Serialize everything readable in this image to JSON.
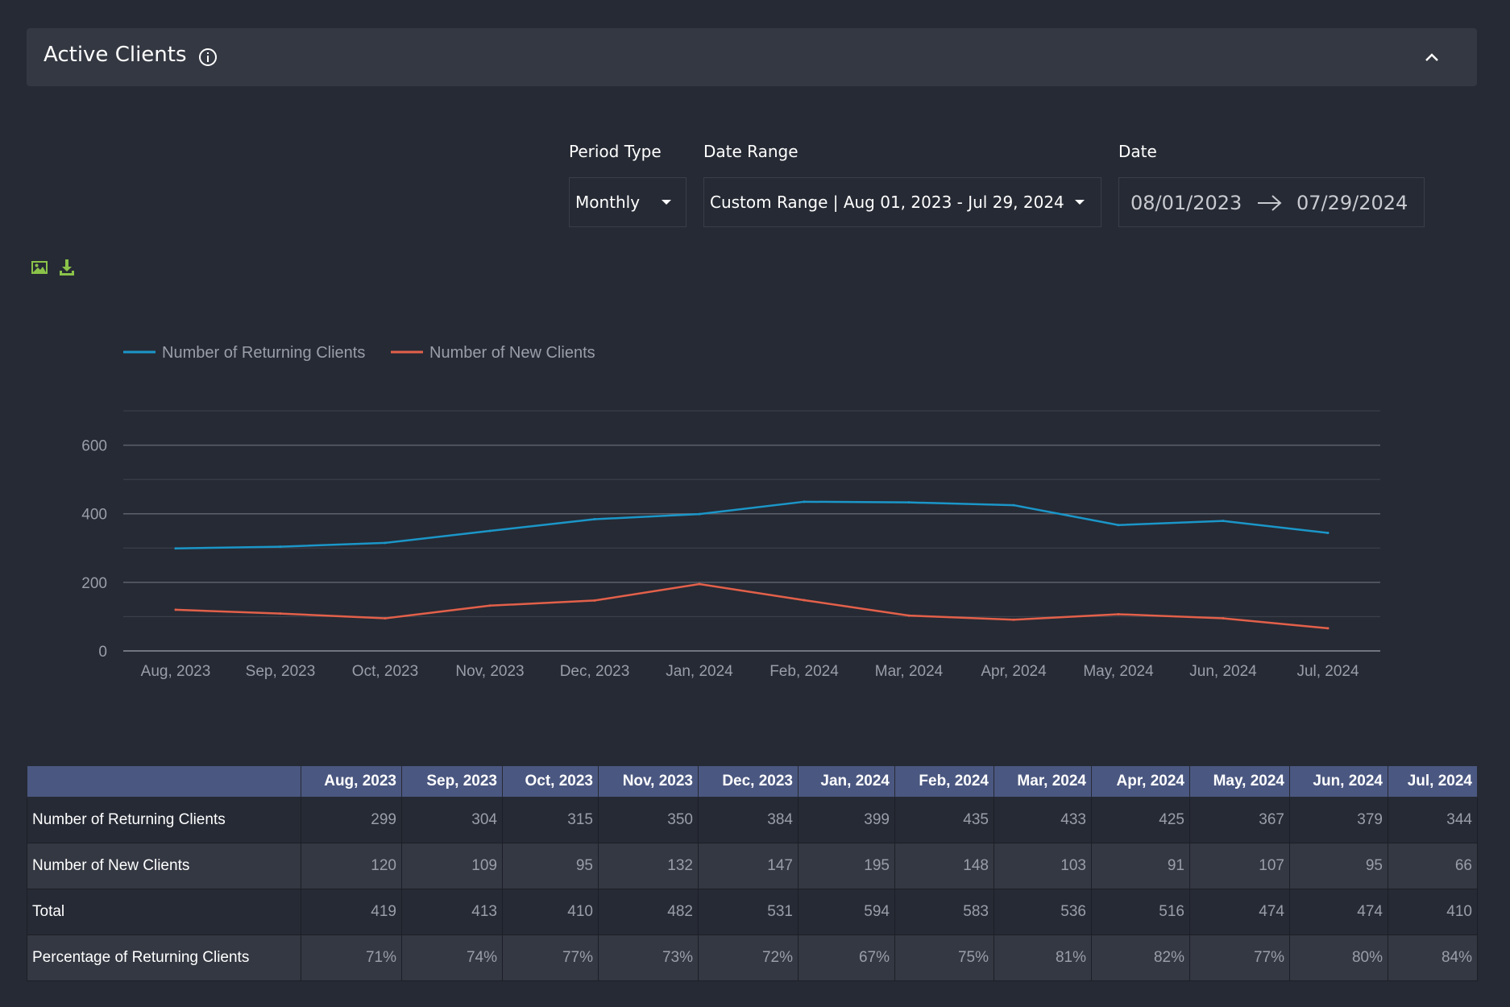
{
  "header": {
    "title": "Active Clients",
    "info_icon": "info-icon",
    "collapse_icon": "chevron-up-icon"
  },
  "filters": {
    "period_type": {
      "label": "Period Type",
      "value": "Monthly"
    },
    "date_range": {
      "label": "Date Range",
      "value": "Custom Range | Aug 01, 2023 - Jul 29, 2024"
    },
    "date": {
      "label": "Date",
      "start": "08/01/2023",
      "end": "07/29/2024"
    }
  },
  "toolbar": {
    "image_icon": "image-icon",
    "download_icon": "download-icon"
  },
  "colors": {
    "returning": "#1b96c8",
    "new": "#e3604a",
    "header_bg": "#343842",
    "table_header": "#4a5780"
  },
  "chart_data": {
    "type": "line",
    "categories": [
      "Aug, 2023",
      "Sep, 2023",
      "Oct, 2023",
      "Nov, 2023",
      "Dec, 2023",
      "Jan, 2024",
      "Feb, 2024",
      "Mar, 2024",
      "Apr, 2024",
      "May, 2024",
      "Jun, 2024",
      "Jul, 2024"
    ],
    "series": [
      {
        "name": "Number of Returning Clients",
        "color": "#1b96c8",
        "values": [
          299,
          304,
          315,
          350,
          384,
          399,
          435,
          433,
          425,
          367,
          379,
          344
        ]
      },
      {
        "name": "Number of New Clients",
        "color": "#e3604a",
        "values": [
          120,
          109,
          95,
          132,
          147,
          195,
          148,
          103,
          91,
          107,
          95,
          66
        ]
      }
    ],
    "ylim": [
      0,
      700
    ],
    "yticks": [
      0,
      200,
      400,
      600
    ],
    "grid": true,
    "legend": "top-left"
  },
  "table": {
    "columns": [
      "",
      "Aug, 2023",
      "Sep, 2023",
      "Oct, 2023",
      "Nov, 2023",
      "Dec, 2023",
      "Jan, 2024",
      "Feb, 2024",
      "Mar, 2024",
      "Apr, 2024",
      "May, 2024",
      "Jun, 2024",
      "Jul, 2024"
    ],
    "rows": [
      {
        "label": "Number of Returning Clients",
        "values": [
          "299",
          "304",
          "315",
          "350",
          "384",
          "399",
          "435",
          "433",
          "425",
          "367",
          "379",
          "344"
        ]
      },
      {
        "label": "Number of New Clients",
        "values": [
          "120",
          "109",
          "95",
          "132",
          "147",
          "195",
          "148",
          "103",
          "91",
          "107",
          "95",
          "66"
        ]
      },
      {
        "label": "Total",
        "values": [
          "419",
          "413",
          "410",
          "482",
          "531",
          "594",
          "583",
          "536",
          "516",
          "474",
          "474",
          "410"
        ]
      },
      {
        "label": "Percentage of Returning Clients",
        "values": [
          "71%",
          "74%",
          "77%",
          "73%",
          "72%",
          "67%",
          "75%",
          "81%",
          "82%",
          "77%",
          "80%",
          "84%"
        ]
      }
    ]
  }
}
